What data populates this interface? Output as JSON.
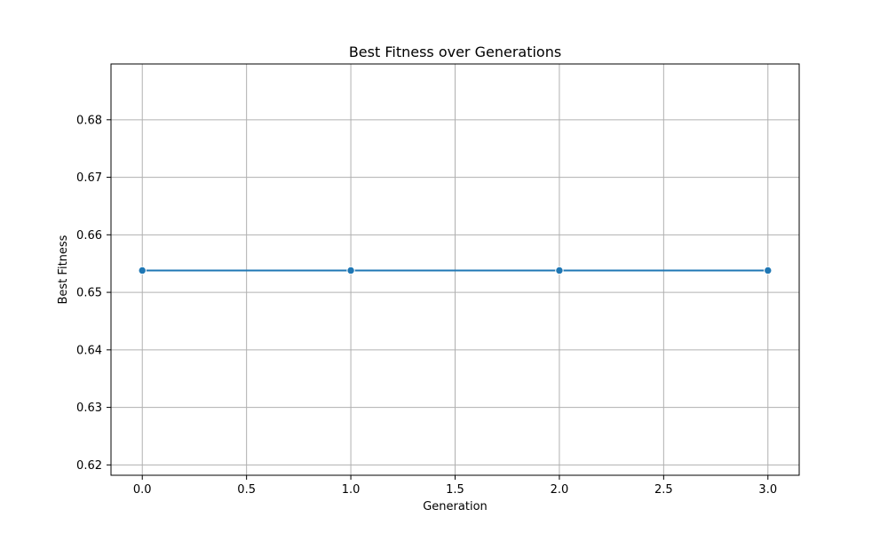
{
  "chart_data": {
    "type": "line",
    "title": "Best Fitness over Generations",
    "xlabel": "Generation",
    "ylabel": "Best Fitness",
    "xlim": [
      -0.15,
      3.15
    ],
    "ylim": [
      0.6182,
      0.6897
    ],
    "xticks": [
      0.0,
      0.5,
      1.0,
      1.5,
      2.0,
      2.5,
      3.0
    ],
    "xtick_labels": [
      "0.0",
      "0.5",
      "1.0",
      "1.5",
      "2.0",
      "2.5",
      "3.0"
    ],
    "yticks": [
      0.62,
      0.63,
      0.64,
      0.65,
      0.66,
      0.67,
      0.68
    ],
    "ytick_labels": [
      "0.62",
      "0.63",
      "0.64",
      "0.65",
      "0.66",
      "0.67",
      "0.68"
    ],
    "grid": true,
    "series": [
      {
        "x": [
          0,
          1,
          2,
          3
        ],
        "values": [
          0.6538,
          0.6538,
          0.6538,
          0.6538
        ],
        "color": "#1f77b4",
        "marker": "circle"
      }
    ]
  },
  "colors": {
    "grid": "#b0b0b0",
    "axes": "#000000",
    "line": "#1f77b4",
    "marker_edge": "#ffffff"
  }
}
